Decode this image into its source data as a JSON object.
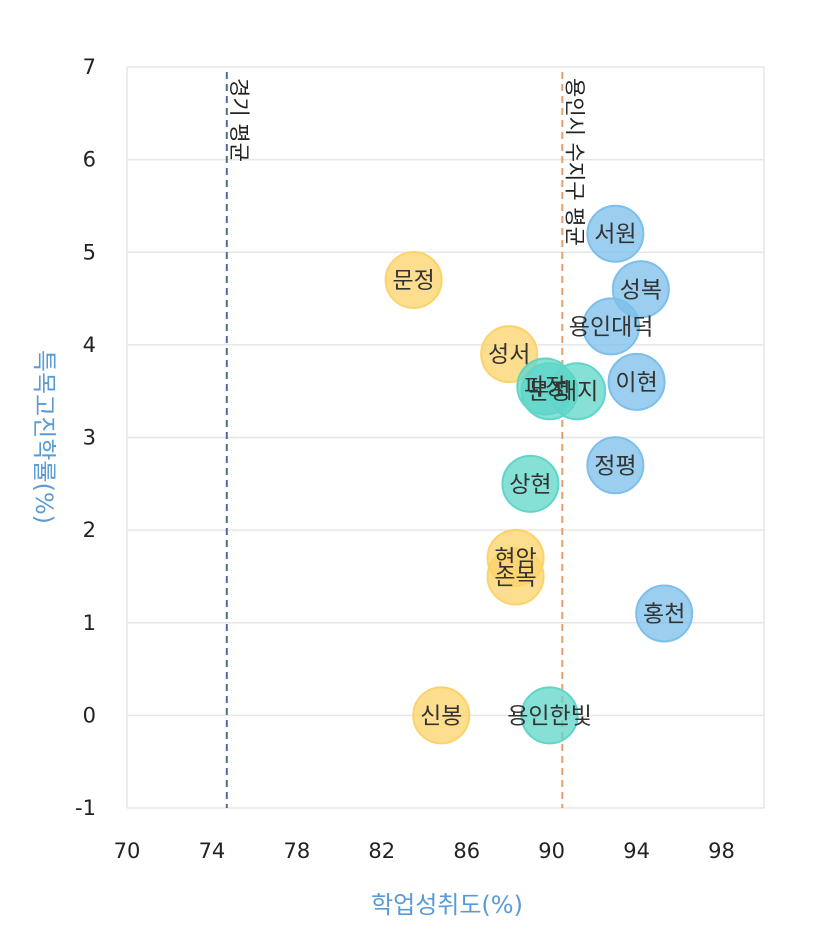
{
  "chart_data": {
    "type": "scatter",
    "xlabel": "학업성취도(%)",
    "ylabel": "특목고진학률(%)",
    "xlim": [
      70,
      100
    ],
    "ylim": [
      -1,
      7
    ],
    "x_ticks": [
      70,
      74,
      78,
      82,
      86,
      90,
      94,
      98
    ],
    "y_ticks": [
      -1,
      0,
      1,
      2,
      3,
      4,
      5,
      6,
      7
    ],
    "grid": "horizontal",
    "reference_lines": [
      {
        "label": "경기 평균",
        "x": 74.7,
        "color": "#4a6e8f"
      },
      {
        "label": "용인시 수지구 평균",
        "x": 90.5,
        "color": "#e8a06a"
      }
    ],
    "points": [
      {
        "label": "서원",
        "x": 93.0,
        "y": 5.2,
        "color": "#7bbfea"
      },
      {
        "label": "성복",
        "x": 94.2,
        "y": 4.6,
        "color": "#7bbfea"
      },
      {
        "label": "용인대덕",
        "x": 92.8,
        "y": 4.2,
        "color": "#7bbfea"
      },
      {
        "label": "이현",
        "x": 94.0,
        "y": 3.6,
        "color": "#7bbfea"
      },
      {
        "label": "정평",
        "x": 93.0,
        "y": 2.7,
        "color": "#7bbfea"
      },
      {
        "label": "홍천",
        "x": 95.3,
        "y": 1.1,
        "color": "#7bbfea"
      },
      {
        "label": "문정",
        "x": 83.5,
        "y": 4.7,
        "color": "#fcd36a"
      },
      {
        "label": "성서",
        "x": 88.0,
        "y": 3.9,
        "color": "#fcd36a"
      },
      {
        "label": "현암",
        "x": 88.3,
        "y": 1.7,
        "color": "#fcd36a"
      },
      {
        "label": "손목",
        "x": 88.3,
        "y": 1.5,
        "color": "#fcd36a"
      },
      {
        "label": "신봉",
        "x": 84.8,
        "y": 0.0,
        "color": "#fcd36a"
      },
      {
        "label": "대지",
        "x": 91.2,
        "y": 3.5,
        "color": "#5fd6c8"
      },
      {
        "label": "파장",
        "x": 89.7,
        "y": 3.55,
        "color": "#5fd6c8"
      },
      {
        "label": "문정",
        "x": 89.9,
        "y": 3.5,
        "color": "#5fd6c8"
      },
      {
        "label": "상현",
        "x": 89.0,
        "y": 2.5,
        "color": "#5fd6c8"
      },
      {
        "label": "용인한빛",
        "x": 89.9,
        "y": 0.0,
        "color": "#5fd6c8"
      }
    ]
  }
}
